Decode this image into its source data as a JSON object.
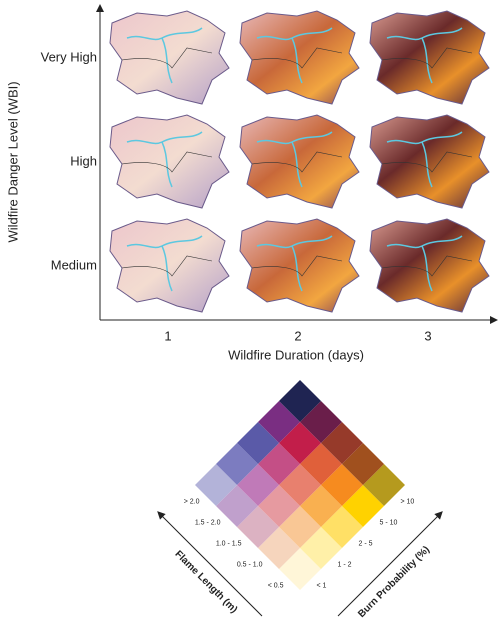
{
  "y_axis_title": "Wildfire Danger Level (WBI)",
  "x_axis_title": "Wildfire Duration (days)",
  "rows": [
    "Very High",
    "High",
    "Medium"
  ],
  "columns": [
    "1",
    "2",
    "3"
  ],
  "legend": {
    "flame_length_title": "Flame Length (m)",
    "flame_length_classes": [
      "< 0.5",
      "0.5 - 1.0",
      "1.0 - 1.5",
      "1.5 - 2.0",
      "> 2.0"
    ],
    "burn_probability_title": "Burn Probability (%)",
    "burn_probability_classes": [
      "< 1",
      "1 - 2",
      "2 - 5",
      "5 - 10",
      "> 10"
    ],
    "colors": [
      [
        "#fff6d8",
        "#fff0a8",
        "#ffe066",
        "#ffd200",
        "#b59a1e"
      ],
      [
        "#f6d5bd",
        "#f9c795",
        "#f9b050",
        "#f68b1f",
        "#a0501e"
      ],
      [
        "#dcb2c2",
        "#e69aa0",
        "#e8806e",
        "#e0603a",
        "#963a2a"
      ],
      [
        "#c0a0cc",
        "#c07ab8",
        "#c44f86",
        "#c21e4a",
        "#6a1e4a"
      ],
      [
        "#b3b3d9",
        "#7c7cc0",
        "#5a5aa8",
        "#7a2e82",
        "#1f2452"
      ]
    ]
  }
}
